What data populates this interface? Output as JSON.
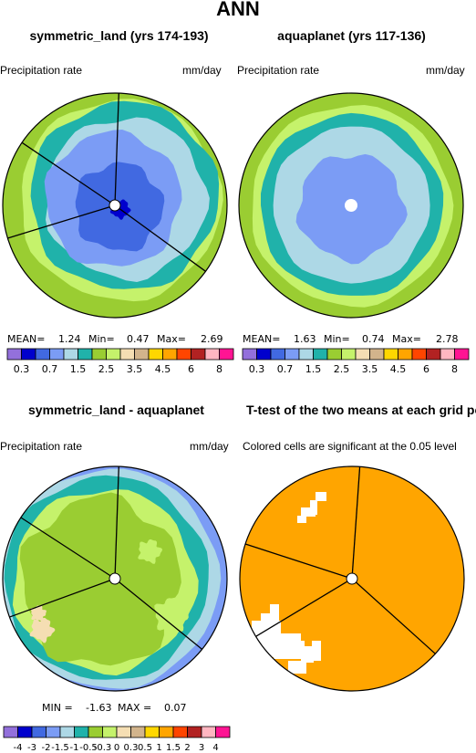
{
  "page": {
    "title": "ANN"
  },
  "panels": [
    {
      "title": "symmetric_land (yrs 174-193)",
      "left_label": "Precipitation rate",
      "right_label": "mm/day",
      "stats": {
        "mean_label": "MEAN=",
        "mean": "1.24",
        "min_label": "Min=",
        "min": "0.47",
        "max_label": "Max=",
        "max": "2.69"
      }
    },
    {
      "title": "aquaplanet (yrs 117-136)",
      "left_label": "Precipitation rate",
      "right_label": "mm/day",
      "stats": {
        "mean_label": "MEAN=",
        "mean": "1.63",
        "min_label": "Min=",
        "min": "0.74",
        "max_label": "Max=",
        "max": "2.78"
      }
    },
    {
      "title": "symmetric_land - aquaplanet",
      "left_label": "Precipitation rate",
      "right_label": "mm/day",
      "stats": {
        "min_label": "MIN =",
        "min": "-1.63",
        "max_label": "MAX =",
        "max": "0.07"
      }
    },
    {
      "title": "T-test of the two means at each grid point",
      "left_label": "Colored cells are significant at the 0.05 level"
    }
  ],
  "chart_data": [
    {
      "type": "heatmap",
      "projection": "polar",
      "title": "symmetric_land (yrs 174-193)",
      "units": "mm/day",
      "contour_levels": [
        0.3,
        0.5,
        0.7,
        1.0,
        1.5,
        2.0,
        2.5,
        3.0,
        3.5,
        4.0,
        4.5,
        5.0,
        6.0,
        7.0,
        8.0
      ],
      "colorbar_labels": [
        "0.3",
        "0.7",
        "1.5",
        "2.5",
        "3.5",
        "4.5",
        "6",
        "8"
      ],
      "stats": {
        "mean": 1.24,
        "min": 0.47,
        "max": 2.69
      }
    },
    {
      "type": "heatmap",
      "projection": "polar",
      "title": "aquaplanet (yrs 117-136)",
      "units": "mm/day",
      "contour_levels": [
        0.3,
        0.5,
        0.7,
        1.0,
        1.5,
        2.0,
        2.5,
        3.0,
        3.5,
        4.0,
        4.5,
        5.0,
        6.0,
        7.0,
        8.0
      ],
      "colorbar_labels": [
        "0.3",
        "0.7",
        "1.5",
        "2.5",
        "3.5",
        "4.5",
        "6",
        "8"
      ],
      "stats": {
        "mean": 1.63,
        "min": 0.74,
        "max": 2.78
      }
    },
    {
      "type": "heatmap",
      "projection": "polar",
      "title": "symmetric_land - aquaplanet",
      "units": "mm/day",
      "contour_levels": [
        -4,
        -3,
        -2,
        -1.5,
        -1,
        -0.5,
        -0.3,
        0,
        0.3,
        0.5,
        1,
        1.5,
        2,
        3,
        4
      ],
      "colorbar_labels": [
        "-4",
        "-3",
        "-2",
        "-1.5",
        "-1",
        "-0.5",
        "-0.3",
        "0",
        "0.3",
        "0.5",
        "1",
        "1.5",
        "2",
        "3",
        "4"
      ],
      "stats": {
        "min": -1.63,
        "max": 0.07
      }
    },
    {
      "type": "heatmap",
      "projection": "polar",
      "title": "T-test of the two means at each grid point",
      "note": "Colored cells are significant at the 0.05 level",
      "significance_level": 0.05
    }
  ],
  "colors": {
    "palette": [
      "#9370db",
      "#0000cd",
      "#4169e1",
      "#7b9cf5",
      "#add8e6",
      "#20b2aa",
      "#9acd32",
      "#c5f26b",
      "#f5deb3",
      "#d2b48c",
      "#ffd700",
      "#ffa500",
      "#ff4500",
      "#b22222",
      "#ffb6c1",
      "#ff1493"
    ],
    "significant": "#ffa500",
    "outline": "#000000"
  }
}
